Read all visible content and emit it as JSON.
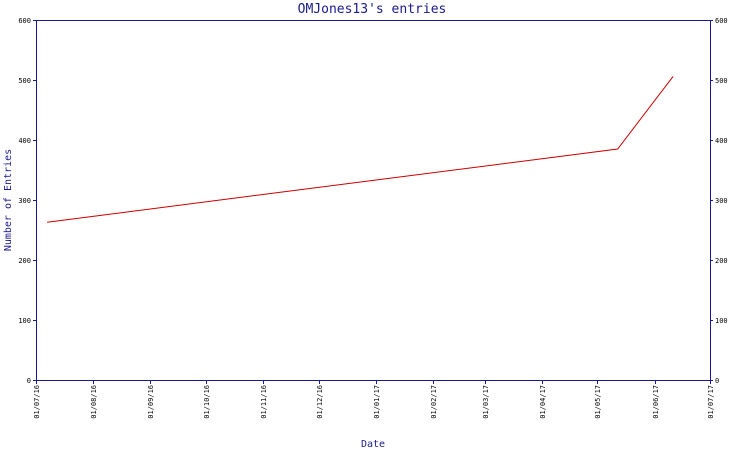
{
  "chart_data": {
    "type": "line",
    "title": "OMJones13's entries",
    "xlabel": "Date",
    "ylabel": "Number of Entries",
    "ylim": [
      0,
      600
    ],
    "y_ticks": [
      0,
      100,
      200,
      300,
      400,
      500,
      600
    ],
    "xlim": [
      "01/07/16",
      "01/07/17"
    ],
    "x_ticks": [
      "01/07/16",
      "01/08/16",
      "01/09/16",
      "01/10/16",
      "01/11/16",
      "01/12/16",
      "01/01/17",
      "01/02/17",
      "01/03/17",
      "01/04/17",
      "01/05/17",
      "01/06/17",
      "01/07/17"
    ],
    "grid": false,
    "legend": "none",
    "series": [
      {
        "color": "#cc0000",
        "points": [
          {
            "x": "07/07/16",
            "y": 263
          },
          {
            "x": "12/05/17",
            "y": 385
          },
          {
            "x": "11/06/17",
            "y": 506
          }
        ]
      }
    ]
  }
}
